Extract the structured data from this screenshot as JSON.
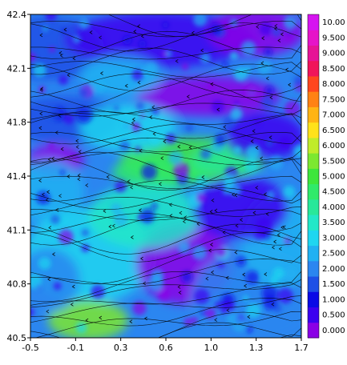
{
  "chart_data": {
    "type": "heatmap",
    "title": "",
    "xlabel": "",
    "ylabel": "",
    "xlim": [
      -0.5,
      1.7
    ],
    "ylim": [
      40.5,
      42.4
    ],
    "x_ticks": [
      "-0.5",
      "-0.1",
      "0.3",
      "0.6",
      "1.0",
      "1.3",
      "1.7"
    ],
    "y_ticks": [
      "40.5",
      "40.8",
      "41.1",
      "41.4",
      "41.8",
      "42.1",
      "42.4"
    ],
    "overlay": "streamlines",
    "colorbar": {
      "levels": [
        "0.000",
        "0.500",
        "1.000",
        "1.500",
        "2.000",
        "2.500",
        "3.000",
        "3.500",
        "4.000",
        "4.500",
        "5.000",
        "5.500",
        "6.000",
        "6.500",
        "7.000",
        "7.500",
        "8.000",
        "8.500",
        "9.000",
        "9.500",
        "10.00"
      ],
      "colors": [
        "#8a00e6",
        "#3c00f0",
        "#0a0ae6",
        "#1e50e6",
        "#2b86f0",
        "#21b1f2",
        "#1fd6f0",
        "#22e8c8",
        "#28e89a",
        "#30ea6a",
        "#3ee63c",
        "#7ce830",
        "#c0ec2a",
        "#ffe21a",
        "#ffb414",
        "#ff8214",
        "#ff461e",
        "#f0145a",
        "#e61496",
        "#e614c8",
        "#d614f0"
      ]
    },
    "field_notes": "Wind speed colour contours over NE Iberian domain with streamline overlay"
  }
}
